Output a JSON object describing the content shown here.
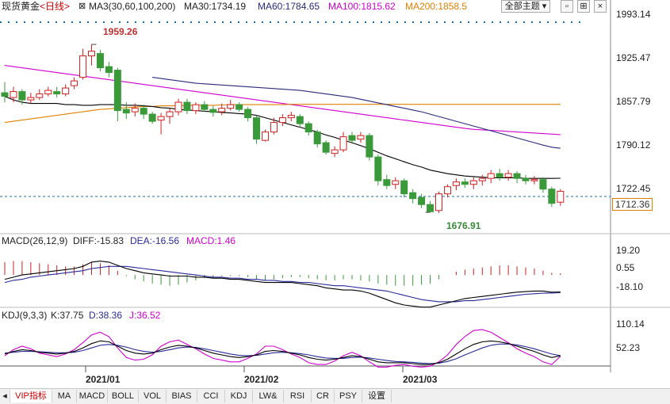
{
  "header": {
    "instrument": "现货黄金",
    "period": "日线",
    "ma_label": "MA3(30,60,100,200)",
    "ma30": "MA30:1734.19",
    "ma60": "MA60:1784.65",
    "ma100": "MA100:1815.62",
    "ma200": "MA200:1858.5",
    "theme_button": "全部主题",
    "ma30_color": "#000000",
    "ma60_color": "#2a2a7a",
    "ma100_color": "#d000d0",
    "ma200_color": "#e08000"
  },
  "macd": {
    "label": "MACD(26,12,9)",
    "diff": "DIFF:-15.83",
    "dea": "DEA:-16.56",
    "macd": "MACD:1.46"
  },
  "kdj": {
    "label": "KDJ(9,3,3)",
    "k": "K:37.75",
    "d": "D:38.36",
    "j": "J:36.52"
  },
  "price_axis": [
    "1993.14",
    "1925.47",
    "1857.79",
    "1790.12",
    "1722.45"
  ],
  "current_price": "1712.36",
  "macd_axis": [
    "19.20",
    "0.55",
    "-18.10"
  ],
  "kdj_axis": [
    "110.14",
    "52.23"
  ],
  "annotations": {
    "high": "1959.26",
    "low": "1676.91"
  },
  "dates": [
    "2021/01",
    "2021/02",
    "2021/03"
  ],
  "tabs": [
    "VIP指标",
    "MA",
    "MACD",
    "BOLL",
    "VOL",
    "BIAS",
    "CCI",
    "KDJ",
    "LW&",
    "RSI",
    "CR",
    "PSY",
    "设置"
  ],
  "colors": {
    "up": "#d02020",
    "down": "#3a9a3a",
    "dashed": "#1a6fb0"
  },
  "chart_data": {
    "type": "candlestick",
    "price_range": [
      1645,
      2010
    ],
    "candles": [
      [
        1878,
        1872,
        1896,
        1862
      ],
      [
        1870,
        1880,
        1888,
        1862
      ],
      [
        1880,
        1866,
        1884,
        1858
      ],
      [
        1866,
        1870,
        1878,
        1860
      ],
      [
        1870,
        1876,
        1884,
        1866
      ],
      [
        1876,
        1882,
        1888,
        1872
      ],
      [
        1880,
        1876,
        1888,
        1870
      ],
      [
        1876,
        1886,
        1892,
        1872
      ],
      [
        1890,
        1898,
        1904,
        1884
      ],
      [
        1904,
        1940,
        1952,
        1900
      ],
      [
        1940,
        1948,
        1959.26,
        1924
      ],
      [
        1944,
        1920,
        1950,
        1914
      ],
      [
        1922,
        1912,
        1930,
        1904
      ],
      [
        1916,
        1848,
        1920,
        1830
      ],
      [
        1850,
        1844,
        1862,
        1834
      ],
      [
        1846,
        1852,
        1860,
        1838
      ],
      [
        1852,
        1842,
        1858,
        1834
      ],
      [
        1842,
        1830,
        1846,
        1826
      ],
      [
        1832,
        1838,
        1844,
        1808
      ],
      [
        1838,
        1846,
        1852,
        1826
      ],
      [
        1846,
        1862,
        1868,
        1840
      ],
      [
        1862,
        1848,
        1868,
        1842
      ],
      [
        1848,
        1858,
        1862,
        1842
      ],
      [
        1858,
        1850,
        1864,
        1846
      ],
      [
        1850,
        1845,
        1856,
        1838
      ],
      [
        1846,
        1852,
        1860,
        1840
      ],
      [
        1852,
        1858,
        1866,
        1848
      ],
      [
        1858,
        1850,
        1862,
        1846
      ],
      [
        1850,
        1836,
        1854,
        1830
      ],
      [
        1836,
        1800,
        1840,
        1792
      ],
      [
        1798,
        1812,
        1816,
        1796
      ],
      [
        1812,
        1828,
        1836,
        1808
      ],
      [
        1828,
        1836,
        1842,
        1822
      ],
      [
        1836,
        1840,
        1846,
        1830
      ],
      [
        1838,
        1826,
        1842,
        1820
      ],
      [
        1826,
        1812,
        1830,
        1806
      ],
      [
        1812,
        1792,
        1816,
        1786
      ],
      [
        1794,
        1778,
        1798,
        1774
      ],
      [
        1776,
        1782,
        1788,
        1770
      ],
      [
        1782,
        1804,
        1812,
        1778
      ],
      [
        1806,
        1798,
        1812,
        1792
      ],
      [
        1800,
        1806,
        1812,
        1794
      ],
      [
        1806,
        1770,
        1810,
        1764
      ],
      [
        1770,
        1730,
        1774,
        1722
      ],
      [
        1732,
        1722,
        1740,
        1716
      ],
      [
        1724,
        1730,
        1736,
        1716
      ],
      [
        1730,
        1708,
        1734,
        1702
      ],
      [
        1710,
        1700,
        1716,
        1692
      ],
      [
        1702,
        1690,
        1708,
        1684
      ],
      [
        1690,
        1678,
        1696,
        1676.91
      ],
      [
        1680,
        1708,
        1712,
        1676
      ],
      [
        1708,
        1720,
        1724,
        1702
      ],
      [
        1722,
        1728,
        1734,
        1714
      ],
      [
        1728,
        1724,
        1734,
        1718
      ],
      [
        1724,
        1730,
        1736,
        1716
      ],
      [
        1730,
        1734,
        1740,
        1722
      ],
      [
        1734,
        1742,
        1748,
        1726
      ],
      [
        1742,
        1736,
        1750,
        1730
      ],
      [
        1736,
        1742,
        1748,
        1730
      ],
      [
        1742,
        1734,
        1746,
        1726
      ],
      [
        1734,
        1730,
        1740,
        1724
      ],
      [
        1730,
        1732,
        1738,
        1724
      ],
      [
        1732,
        1716,
        1736,
        1710
      ],
      [
        1716,
        1692,
        1720,
        1686
      ],
      [
        1694,
        1712.36,
        1716,
        1688
      ]
    ],
    "ma30": [
      1872,
      1866,
      1862,
      1860,
      1860,
      1860,
      1860,
      1858,
      1858,
      1857,
      1857,
      1858,
      1858,
      1858,
      1857,
      1857,
      1856,
      1855,
      1853,
      1852,
      1850,
      1849,
      1848,
      1847,
      1846,
      1845,
      1844,
      1843,
      1842,
      1840,
      1836,
      1832,
      1828,
      1824,
      1820,
      1816,
      1812,
      1807,
      1803,
      1798,
      1794,
      1789,
      1784,
      1778,
      1772,
      1767,
      1762,
      1757,
      1753,
      1748,
      1745,
      1742,
      1740,
      1738,
      1737,
      1736,
      1735,
      1735,
      1735,
      1735,
      1734,
      1734,
      1734,
      1734,
      1734.19
    ],
    "ma60": [
      1904,
      1902,
      1900,
      1898,
      1896,
      1894,
      1893,
      1892,
      1891,
      1890,
      1889,
      1888,
      1887,
      1886,
      1885,
      1884,
      1883,
      1882,
      1880,
      1878,
      1876,
      1874,
      1872,
      1870,
      1867,
      1864,
      1861,
      1858,
      1855,
      1852,
      1849,
      1846,
      1842,
      1838,
      1834,
      1830,
      1826,
      1822,
      1818,
      1814,
      1810,
      1806,
      1802,
      1798,
      1794,
      1790,
      1786.5,
      1784.65
    ],
    "ma100": [
      1924,
      1922,
      1920,
      1918,
      1916,
      1914,
      1912,
      1910,
      1908,
      1906,
      1904,
      1902,
      1900,
      1898,
      1896,
      1894,
      1892,
      1890,
      1888,
      1886,
      1884,
      1882,
      1880,
      1878,
      1876,
      1874,
      1872,
      1870,
      1868,
      1866,
      1864,
      1862,
      1860,
      1858,
      1856,
      1854,
      1852,
      1850,
      1848,
      1846,
      1844,
      1842,
      1840,
      1838,
      1836,
      1834,
      1832,
      1830,
      1828,
      1826,
      1824,
      1822,
      1820,
      1818,
      1816.5,
      1815.62
    ],
    "ma200": [
      1828,
      1830,
      1832,
      1834,
      1836,
      1838,
      1840,
      1842,
      1844,
      1846,
      1848,
      1850,
      1851,
      1852,
      1853,
      1854,
      1855,
      1855,
      1856,
      1856,
      1856,
      1857,
      1857,
      1857,
      1857,
      1857.5,
      1858,
      1858,
      1858,
      1858,
      1858,
      1858,
      1858,
      1858.5,
      1858.5,
      1858.5,
      1858.5,
      1858.5,
      1858.5,
      1858.5
    ],
    "macd_range": [
      -28,
      26
    ],
    "macd_hist": [
      12,
      13,
      13,
      12,
      11,
      10,
      9,
      8,
      8,
      10,
      12,
      11,
      9,
      4,
      -1,
      -4,
      -6,
      -8,
      -9,
      -10,
      -9,
      -7,
      -5,
      -3,
      -2,
      -1,
      -1,
      -1,
      -2,
      -4,
      -5,
      -4,
      -3,
      -2,
      -2,
      -3,
      -4,
      -5,
      -5,
      -4,
      -4,
      -5,
      -6,
      -8,
      -9,
      -10,
      -10,
      -10,
      -9,
      -8,
      -4,
      0,
      3,
      5,
      6,
      7,
      8,
      9,
      9,
      8,
      7,
      6,
      4,
      2,
      1.46
    ],
    "macd_diff": [
      -4,
      -2,
      0,
      1,
      2,
      3,
      4,
      5,
      6,
      8,
      12,
      13,
      12,
      9,
      6,
      4,
      2,
      1,
      0,
      -1,
      -1,
      -1,
      -2,
      -2,
      -3,
      -3,
      -4,
      -4,
      -5,
      -6,
      -7,
      -7,
      -7,
      -7,
      -8,
      -9,
      -10,
      -12,
      -13,
      -14,
      -14,
      -15,
      -17,
      -20,
      -23,
      -26,
      -28,
      -29,
      -30,
      -30,
      -28,
      -26,
      -24,
      -22,
      -21,
      -20,
      -19,
      -18,
      -17,
      -16,
      -15.5,
      -15,
      -15,
      -16,
      -15.83
    ],
    "macd_dea": [
      -7,
      -5,
      -4,
      -2,
      -1,
      0,
      1,
      2,
      3,
      4,
      6,
      7,
      8,
      8,
      8,
      7,
      6,
      5,
      4,
      3,
      2,
      1,
      0,
      -1,
      -2,
      -2,
      -3,
      -3,
      -4,
      -4,
      -5,
      -5,
      -6,
      -6,
      -7,
      -7,
      -8,
      -9,
      -10,
      -10,
      -11,
      -12,
      -13,
      -14,
      -15,
      -17,
      -19,
      -21,
      -23,
      -24,
      -25,
      -25,
      -25,
      -24,
      -24,
      -23,
      -22,
      -21,
      -20,
      -19,
      -18,
      -17.5,
      -17,
      -16.8,
      -16.56
    ],
    "kdj_range": [
      0,
      120
    ],
    "kdj_k": [
      42,
      48,
      52,
      50,
      46,
      44,
      42,
      44,
      48,
      56,
      66,
      72,
      70,
      60,
      50,
      44,
      42,
      44,
      52,
      58,
      62,
      60,
      56,
      50,
      44,
      40,
      36,
      34,
      36,
      40,
      48,
      50,
      48,
      44,
      40,
      34,
      30,
      28,
      30,
      34,
      38,
      36,
      30,
      24,
      22,
      22,
      22,
      20,
      18,
      18,
      22,
      30,
      42,
      54,
      64,
      70,
      72,
      70,
      66,
      60,
      54,
      48,
      40,
      34,
      37.75
    ],
    "kdj_d": [
      44,
      46,
      48,
      48,
      47,
      46,
      45,
      45,
      46,
      50,
      56,
      62,
      64,
      62,
      58,
      52,
      48,
      46,
      48,
      52,
      56,
      58,
      57,
      54,
      50,
      46,
      42,
      39,
      38,
      39,
      42,
      45,
      46,
      45,
      43,
      40,
      36,
      33,
      32,
      32,
      34,
      35,
      33,
      30,
      27,
      25,
      24,
      23,
      21,
      20,
      21,
      25,
      31,
      40,
      48,
      56,
      62,
      65,
      65,
      63,
      59,
      54,
      48,
      42,
      38.36
    ],
    "kdj_j": [
      38,
      52,
      60,
      54,
      44,
      40,
      36,
      42,
      52,
      68,
      86,
      92,
      82,
      56,
      34,
      28,
      30,
      40,
      60,
      70,
      74,
      64,
      54,
      42,
      32,
      28,
      24,
      24,
      32,
      42,
      60,
      60,
      52,
      42,
      34,
      22,
      18,
      18,
      26,
      38,
      46,
      38,
      24,
      12,
      12,
      16,
      18,
      14,
      12,
      14,
      24,
      40,
      64,
      82,
      96,
      98,
      92,
      80,
      68,
      54,
      44,
      36,
      24,
      18,
      36.52
    ]
  }
}
